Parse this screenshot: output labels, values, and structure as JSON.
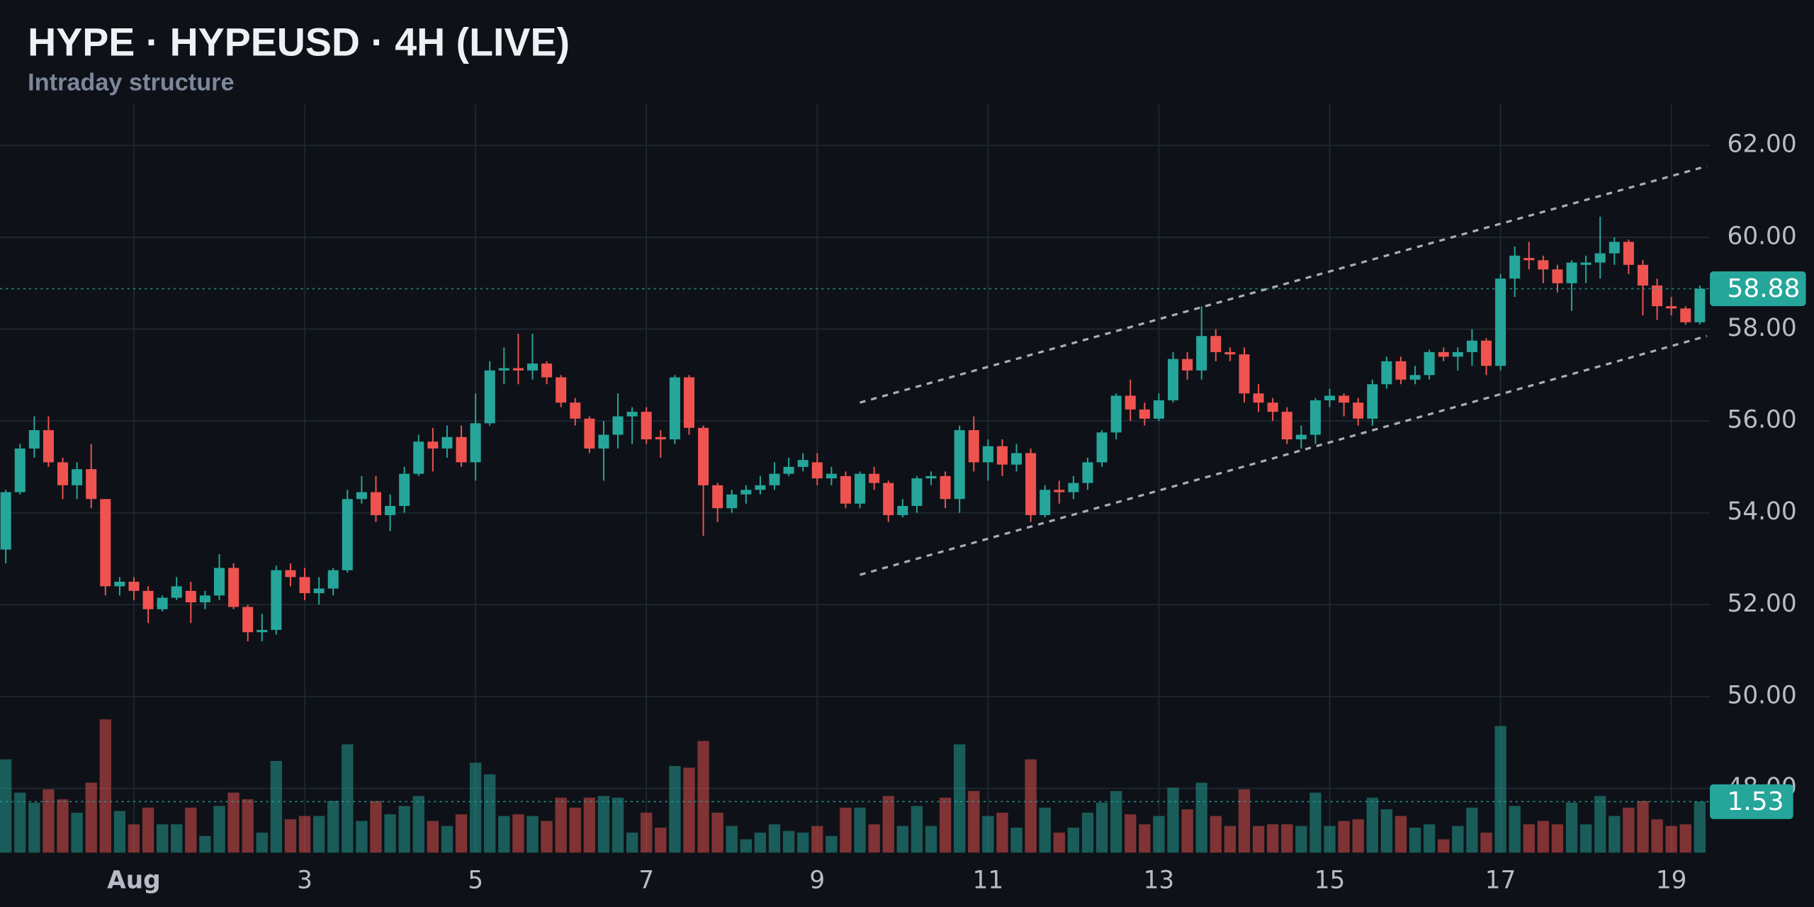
{
  "chart_data": {
    "type": "candlestick",
    "title": "HYPE · HYPEUSD · 4H (LIVE)",
    "subtitle": "Intraday structure",
    "categories": [
      null,
      null,
      null,
      null,
      null,
      null,
      null,
      null,
      null,
      "Aug",
      null,
      null,
      null,
      null,
      null,
      null,
      null,
      null,
      null,
      null,
      null,
      "3",
      null,
      null,
      null,
      null,
      null,
      null,
      null,
      null,
      null,
      null,
      null,
      "5",
      null,
      null,
      null,
      null,
      null,
      null,
      null,
      null,
      null,
      null,
      null,
      "7",
      null,
      null,
      null,
      null,
      null,
      null,
      null,
      null,
      null,
      null,
      null,
      "9",
      null,
      null,
      null,
      null,
      null,
      null,
      null,
      null,
      null,
      null,
      null,
      "11",
      null,
      null,
      null,
      null,
      null,
      null,
      null,
      null,
      null,
      null,
      null,
      "13",
      null,
      null,
      null,
      null,
      null,
      null,
      null,
      null,
      null,
      null,
      null,
      "15",
      null,
      null,
      null,
      null,
      null,
      null,
      null,
      null,
      null,
      null,
      null,
      "17",
      null,
      null,
      null,
      null,
      null,
      null,
      null,
      null,
      null,
      null,
      null,
      "19",
      null,
      null
    ],
    "open": [
      53.2,
      54.45,
      55.4,
      55.8,
      55.1,
      54.6,
      54.95,
      54.3,
      52.4,
      52.5,
      52.3,
      51.9,
      52.15,
      52.3,
      52.05,
      52.2,
      52.8,
      51.95,
      51.4,
      51.45,
      52.75,
      52.6,
      52.25,
      52.35,
      52.75,
      54.3,
      54.45,
      53.95,
      54.15,
      54.85,
      55.55,
      55.4,
      55.65,
      55.1,
      55.95,
      57.1,
      57.15,
      57.1,
      57.25,
      56.95,
      56.4,
      56.05,
      55.4,
      55.7,
      56.1,
      56.2,
      55.65,
      55.6,
      56.95,
      55.85,
      54.6,
      54.1,
      54.4,
      54.5,
      54.6,
      54.85,
      55.0,
      55.1,
      54.75,
      54.8,
      54.2,
      54.85,
      54.65,
      53.95,
      54.15,
      54.75,
      54.8,
      54.3,
      55.8,
      55.1,
      55.45,
      55.05,
      55.3,
      53.95,
      54.5,
      54.45,
      54.65,
      55.1,
      55.75,
      56.55,
      56.25,
      56.05,
      56.45,
      57.35,
      57.1,
      57.85,
      57.5,
      57.45,
      56.6,
      56.4,
      56.2,
      55.6,
      55.7,
      56.45,
      56.55,
      56.4,
      56.05,
      56.8,
      57.3,
      56.9,
      57.0,
      57.5,
      57.4,
      57.5,
      57.75,
      57.2,
      59.1,
      59.55,
      59.5,
      59.3,
      59.0,
      59.4,
      59.45,
      59.65,
      59.9,
      59.4,
      58.95,
      58.5,
      58.45,
      58.15
    ],
    "high": [
      54.5,
      55.5,
      56.1,
      56.1,
      55.2,
      55.1,
      55.5,
      54.3,
      52.6,
      52.6,
      52.4,
      52.2,
      52.6,
      52.5,
      52.3,
      53.1,
      52.9,
      52.0,
      51.8,
      52.85,
      52.9,
      52.8,
      52.6,
      52.8,
      54.5,
      54.8,
      54.8,
      54.4,
      55.0,
      55.7,
      55.85,
      55.9,
      55.9,
      56.6,
      57.3,
      57.6,
      57.9,
      57.9,
      57.3,
      57.0,
      56.5,
      56.1,
      56.0,
      56.6,
      56.3,
      56.3,
      55.8,
      57.0,
      57.0,
      55.9,
      54.65,
      54.5,
      54.6,
      54.8,
      55.1,
      55.2,
      55.3,
      55.3,
      55.0,
      54.9,
      54.9,
      55.0,
      54.7,
      54.3,
      54.8,
      54.9,
      54.9,
      55.9,
      56.1,
      55.6,
      55.6,
      55.5,
      55.4,
      54.6,
      54.7,
      54.8,
      55.2,
      55.8,
      56.6,
      56.9,
      56.4,
      56.6,
      57.5,
      57.5,
      58.5,
      58.0,
      57.6,
      57.6,
      56.8,
      56.5,
      56.3,
      55.9,
      56.5,
      56.7,
      56.6,
      56.5,
      56.9,
      57.4,
      57.4,
      57.2,
      57.55,
      57.6,
      57.6,
      58.0,
      57.8,
      59.2,
      59.8,
      59.9,
      59.6,
      59.4,
      59.5,
      59.6,
      60.45,
      60.0,
      59.95,
      59.5,
      59.1,
      58.7,
      58.5,
      58.95
    ],
    "low": [
      52.9,
      54.4,
      55.2,
      55.0,
      54.3,
      54.3,
      54.1,
      52.2,
      52.2,
      52.1,
      51.6,
      51.85,
      52.1,
      51.6,
      51.9,
      52.1,
      51.9,
      51.2,
      51.2,
      51.35,
      52.4,
      52.1,
      52.0,
      52.2,
      52.7,
      54.2,
      53.8,
      53.6,
      54.0,
      54.8,
      54.9,
      55.2,
      55.0,
      54.7,
      55.9,
      56.8,
      56.8,
      56.9,
      56.8,
      56.3,
      55.9,
      55.3,
      54.7,
      55.4,
      55.5,
      55.5,
      55.2,
      55.5,
      55.7,
      53.5,
      53.8,
      54.0,
      54.2,
      54.4,
      54.5,
      54.8,
      54.9,
      54.6,
      54.6,
      54.1,
      54.1,
      54.5,
      53.8,
      53.9,
      54.0,
      54.6,
      54.1,
      54.0,
      54.9,
      54.7,
      54.8,
      54.9,
      53.8,
      53.9,
      54.2,
      54.3,
      54.5,
      55.0,
      55.6,
      56.0,
      55.9,
      56.0,
      56.4,
      56.9,
      56.9,
      57.3,
      57.3,
      56.4,
      56.2,
      56.0,
      55.5,
      55.4,
      55.5,
      56.3,
      56.1,
      55.9,
      55.9,
      56.7,
      56.8,
      56.8,
      56.9,
      57.3,
      57.1,
      57.2,
      57.0,
      57.1,
      58.7,
      59.3,
      59.0,
      58.8,
      58.4,
      59.0,
      59.1,
      59.4,
      59.2,
      58.3,
      58.2,
      58.3,
      58.1,
      58.1
    ],
    "close": [
      54.45,
      55.4,
      55.8,
      55.1,
      54.6,
      54.95,
      54.3,
      52.4,
      52.5,
      52.3,
      51.9,
      52.15,
      52.4,
      52.05,
      52.2,
      52.8,
      51.95,
      51.4,
      51.45,
      52.75,
      52.6,
      52.25,
      52.35,
      52.75,
      54.3,
      54.45,
      53.95,
      54.15,
      54.85,
      55.55,
      55.4,
      55.65,
      55.1,
      55.95,
      57.1,
      57.15,
      57.1,
      57.25,
      56.95,
      56.4,
      56.05,
      55.4,
      55.7,
      56.1,
      56.2,
      55.6,
      55.6,
      56.95,
      55.85,
      54.6,
      54.1,
      54.4,
      54.5,
      54.6,
      54.85,
      55.0,
      55.15,
      54.75,
      54.85,
      54.2,
      54.85,
      54.65,
      53.95,
      54.15,
      54.75,
      54.8,
      54.3,
      55.8,
      55.1,
      55.45,
      55.05,
      55.3,
      53.95,
      54.5,
      54.45,
      54.65,
      55.1,
      55.75,
      56.55,
      56.25,
      56.05,
      56.45,
      57.35,
      57.1,
      57.85,
      57.5,
      57.45,
      56.6,
      56.4,
      56.2,
      55.6,
      55.7,
      56.45,
      56.55,
      56.4,
      56.05,
      56.8,
      57.3,
      56.9,
      57.0,
      57.5,
      57.4,
      57.5,
      57.75,
      57.2,
      59.1,
      59.6,
      59.5,
      59.3,
      59.0,
      59.45,
      59.45,
      59.65,
      59.9,
      59.4,
      58.95,
      58.5,
      58.45,
      58.15,
      58.88
    ],
    "volume": [
      2.8,
      1.8,
      1.5,
      1.9,
      1.6,
      1.2,
      2.1,
      4.0,
      1.25,
      0.85,
      1.35,
      0.85,
      0.85,
      1.35,
      0.5,
      1.4,
      1.8,
      1.6,
      0.6,
      2.75,
      1.0,
      1.1,
      1.1,
      1.55,
      3.25,
      0.95,
      1.55,
      1.15,
      1.4,
      1.7,
      0.95,
      0.8,
      1.15,
      2.7,
      2.35,
      1.1,
      1.15,
      1.1,
      0.95,
      1.65,
      1.35,
      1.65,
      1.7,
      1.65,
      0.6,
      1.2,
      0.75,
      2.6,
      2.55,
      3.35,
      1.2,
      0.8,
      0.4,
      0.6,
      0.85,
      0.65,
      0.6,
      0.8,
      0.5,
      1.35,
      1.35,
      0.85,
      1.7,
      0.8,
      1.4,
      0.8,
      1.65,
      3.25,
      1.85,
      1.1,
      1.2,
      0.75,
      2.8,
      1.35,
      0.6,
      0.75,
      1.2,
      1.5,
      1.85,
      1.15,
      0.85,
      1.1,
      1.95,
      1.3,
      2.1,
      1.1,
      0.8,
      1.9,
      0.8,
      0.85,
      0.85,
      0.8,
      1.8,
      0.8,
      0.95,
      1.0,
      1.65,
      1.3,
      1.1,
      0.75,
      0.85,
      0.4,
      0.8,
      1.35,
      0.6,
      3.8,
      1.4,
      0.85,
      0.95,
      0.85,
      1.5,
      0.85,
      1.7,
      1.1,
      1.35,
      1.55,
      1.0,
      0.8,
      0.85,
      1.53
    ],
    "up_color": "#26a69a",
    "down_color": "#ef5350",
    "ylim": [
      46.6,
      62.9
    ],
    "yticks": [
      {
        "value": 48,
        "label": "48.00"
      },
      {
        "value": 50,
        "label": "50.00"
      },
      {
        "value": 52,
        "label": "52.00"
      },
      {
        "value": 54,
        "label": "54.00"
      },
      {
        "value": 56,
        "label": "56.00"
      },
      {
        "value": 58,
        "label": "58.00"
      },
      {
        "value": 60,
        "label": "60.00"
      },
      {
        "value": 62,
        "label": "62.00"
      }
    ],
    "y2lim": [
      0,
      5
    ],
    "grid": true,
    "channel": {
      "x": [
        60,
        119.5
      ],
      "upper": [
        56.4,
        61.55
      ],
      "lower": [
        52.65,
        57.85
      ]
    }
  }
}
